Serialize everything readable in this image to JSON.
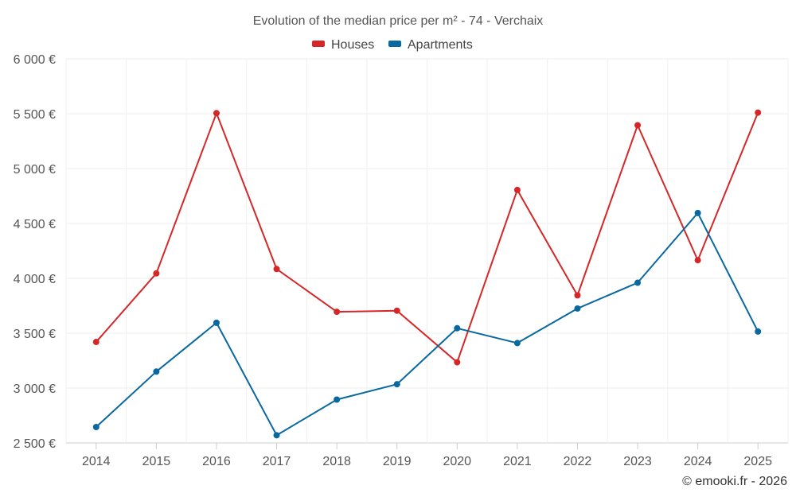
{
  "chart_data": {
    "type": "line",
    "title": "Evolution of the median price per m² - 74 - Verchaix",
    "categories": [
      "2014",
      "2015",
      "2016",
      "2017",
      "2018",
      "2019",
      "2020",
      "2021",
      "2022",
      "2023",
      "2024",
      "2025"
    ],
    "series": [
      {
        "name": "Houses",
        "color": "#d62728",
        "values": [
          3420,
          4045,
          5505,
          4085,
          3695,
          3705,
          3235,
          4805,
          3845,
          5395,
          4165,
          5510
        ]
      },
      {
        "name": "Apartments",
        "color": "#0868a0",
        "values": [
          2645,
          3150,
          3595,
          2570,
          2895,
          3035,
          3545,
          3410,
          3725,
          3960,
          4595,
          3515
        ]
      }
    ],
    "ylim": [
      2500,
      6000
    ],
    "yticks": [
      2500,
      3000,
      3500,
      4000,
      4500,
      5000,
      5500,
      6000
    ],
    "ytick_labels": [
      "2 500 €",
      "3 000 €",
      "3 500 €",
      "4 000 €",
      "4 500 €",
      "5 000 €",
      "5 500 €",
      "6 000 €"
    ],
    "xlabel": "",
    "ylabel": "",
    "legend_position": "top-center",
    "grid": true,
    "credit": "© emooki.fr - 2026"
  }
}
